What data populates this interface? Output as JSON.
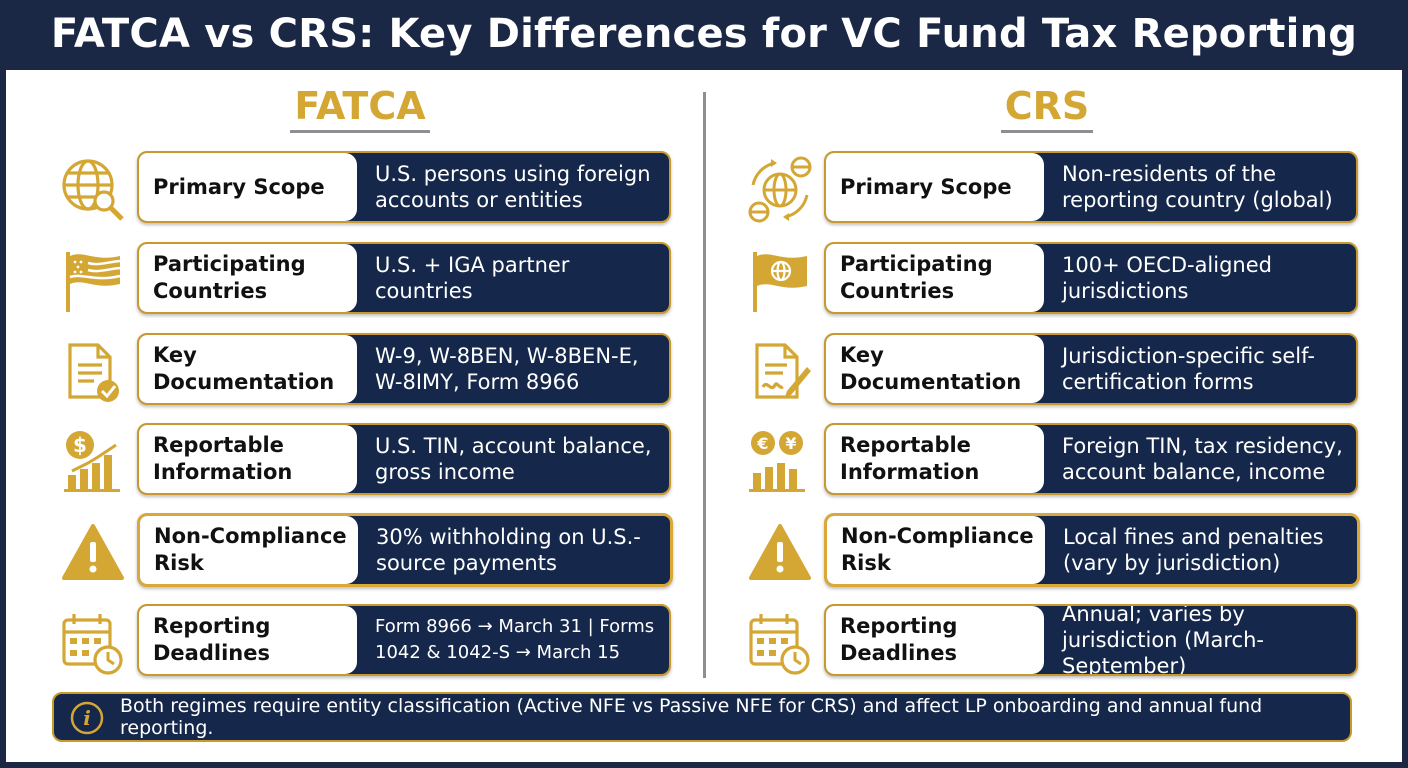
{
  "title": "FATCA vs CRS: Key Differences for VC Fund Tax Reporting",
  "columns": [
    {
      "heading": "FATCA",
      "rows": [
        {
          "label": "Primary Scope",
          "value": "U.S. persons using foreign accounts or entities",
          "icon": "globe-search-icon"
        },
        {
          "label": "Participating Countries",
          "value": "U.S. + IGA partner countries",
          "icon": "us-flag-icon"
        },
        {
          "label": "Key Documentation",
          "value": "W-9, W-8BEN, W-8BEN-E, W-8IMY, Form 8966",
          "icon": "document-check-icon"
        },
        {
          "label": "Reportable Information",
          "value": "U.S. TIN, account balance, gross income",
          "icon": "dollar-chart-icon"
        },
        {
          "label": "Non-Compliance Risk",
          "value": "30% withholding on U.S.-source payments",
          "icon": "warning-icon"
        },
        {
          "label": "Reporting Deadlines",
          "value": "Form 8966 → March 31 | Forms 1042 & 1042-S → March 15",
          "icon": "calendar-clock-icon"
        }
      ]
    },
    {
      "heading": "CRS",
      "rows": [
        {
          "label": "Primary Scope",
          "value": "Non-residents of the reporting country (global)",
          "icon": "globe-exchange-icon"
        },
        {
          "label": "Participating Countries",
          "value": "100+ OECD-aligned jurisdictions",
          "icon": "globe-flag-icon"
        },
        {
          "label": "Key Documentation",
          "value": "Jurisdiction-specific self-certification forms",
          "icon": "document-signature-icon"
        },
        {
          "label": "Reportable Information",
          "value": "Foreign TIN, tax residency, account balance, income",
          "icon": "currency-chart-icon"
        },
        {
          "label": "Non-Compliance Risk",
          "value": "Local fines and penalties (vary by jurisdiction)",
          "icon": "warning-icon"
        },
        {
          "label": "Reporting Deadlines",
          "value": "Annual; varies by jurisdiction (March-September)",
          "icon": "calendar-clock-icon"
        }
      ]
    }
  ],
  "note": {
    "icon": "info-icon",
    "text": "Both regimes require entity classification (Active NFE vs Passive NFE for CRS) and affect LP onboarding and annual fund reporting."
  },
  "colors": {
    "navy": "#1a2845",
    "card_navy": "#15274a",
    "gold": "#d4a734",
    "divider_gray": "#8d8f93"
  }
}
